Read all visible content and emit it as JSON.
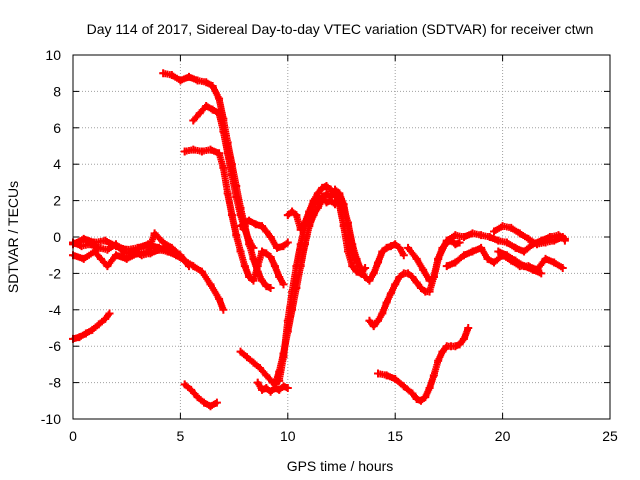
{
  "chart_data": {
    "type": "scatter",
    "title": "Day 114 of 2017, Sidereal Day-to-day VTEC variation (SDTVAR) for receiver ctwn",
    "xlabel": "GPS time / hours",
    "ylabel": "SDTVAR / TECUs",
    "xlim": [
      0,
      25
    ],
    "ylim": [
      -10,
      10
    ],
    "xticks": [
      0,
      5,
      10,
      15,
      20,
      25
    ],
    "yticks": [
      -10,
      -8,
      -6,
      -4,
      -2,
      0,
      2,
      4,
      6,
      8,
      10
    ],
    "grid": true,
    "marker": "plus",
    "color": "#ff0000",
    "series": [
      {
        "name": "s1",
        "x": [
          0.0,
          0.4,
          0.8,
          1.2,
          1.6,
          2.0,
          2.4,
          2.8,
          3.2,
          3.6,
          4.0,
          4.4,
          4.8,
          5.2,
          5.6,
          6.0,
          6.4,
          6.8,
          7.0
        ],
        "y": [
          -0.3,
          -0.5,
          -0.4,
          -0.6,
          -0.7,
          -0.4,
          -0.9,
          -0.8,
          -1.0,
          -0.9,
          -0.7,
          -0.8,
          -1.0,
          -1.3,
          -1.6,
          -1.9,
          -2.6,
          -3.4,
          -4.0
        ]
      },
      {
        "name": "s2",
        "x": [
          0.0,
          0.3,
          0.6,
          0.9,
          1.2,
          1.5,
          1.7
        ],
        "y": [
          -5.6,
          -5.5,
          -5.3,
          -5.1,
          -4.8,
          -4.5,
          -4.2
        ]
      },
      {
        "name": "s3",
        "x": [
          0.0,
          0.5,
          1.0,
          1.3,
          1.6,
          2.0,
          2.5,
          3.0,
          3.5,
          3.8,
          4.2,
          4.6,
          5.0,
          5.4
        ],
        "y": [
          -1.0,
          -1.2,
          -0.8,
          -1.2,
          -1.6,
          -1.0,
          -1.2,
          -0.9,
          -0.8,
          0.2,
          -0.3,
          -0.6,
          -1.0,
          -1.6
        ]
      },
      {
        "name": "s4",
        "x": [
          0.0,
          0.5,
          1.0,
          1.5,
          2.0,
          2.5,
          3.0,
          3.5,
          4.0,
          4.5,
          5.0
        ],
        "y": [
          -0.4,
          -0.1,
          -0.3,
          -0.2,
          -0.5,
          -0.7,
          -0.6,
          -0.4,
          -0.6,
          -0.8,
          -1.1
        ]
      },
      {
        "name": "s5",
        "x": [
          4.2,
          4.6,
          5.0,
          5.4,
          5.8,
          6.2,
          6.5,
          6.8,
          7.0,
          7.2,
          7.4,
          7.6,
          7.8,
          8.0,
          8.2,
          8.4,
          8.6,
          8.8,
          9.0,
          9.2
        ],
        "y": [
          9.0,
          8.9,
          8.6,
          8.8,
          8.6,
          8.5,
          8.3,
          7.6,
          6.5,
          5.2,
          4.0,
          2.8,
          1.6,
          0.6,
          -0.4,
          -1.2,
          -1.9,
          -2.4,
          -2.7,
          -2.8
        ]
      },
      {
        "name": "s6",
        "x": [
          5.6,
          5.9,
          6.2,
          6.5,
          6.8,
          7.0,
          7.2,
          7.4,
          7.6,
          7.8,
          8.0,
          8.2,
          8.4
        ],
        "y": [
          6.4,
          6.8,
          7.2,
          7.0,
          6.8,
          5.8,
          4.6,
          3.4,
          2.2,
          1.2,
          0.4,
          -0.2,
          -0.6
        ]
      },
      {
        "name": "s7",
        "x": [
          5.2,
          5.6,
          6.0,
          6.4,
          6.8,
          7.0,
          7.2,
          7.4,
          7.6,
          7.8,
          8.0,
          8.2,
          8.4,
          8.6,
          8.8,
          9.0,
          9.2,
          9.4,
          9.6,
          9.8
        ],
        "y": [
          4.7,
          4.8,
          4.7,
          4.8,
          4.6,
          3.8,
          2.4,
          1.2,
          0.1,
          -0.8,
          -1.6,
          -2.2,
          -2.4,
          -1.6,
          -0.8,
          -0.9,
          -1.1,
          -1.6,
          -2.2,
          -2.6
        ]
      },
      {
        "name": "s8",
        "x": [
          7.8,
          8.0,
          8.2,
          8.5,
          8.8,
          9.0,
          9.2,
          9.5,
          9.8,
          10.0
        ],
        "y": [
          0.6,
          0.8,
          0.9,
          0.7,
          0.6,
          0.3,
          0.0,
          -0.6,
          -0.5,
          -0.3
        ]
      },
      {
        "name": "s9",
        "x": [
          7.8,
          8.1,
          8.4,
          8.7,
          9.0,
          9.3,
          9.6,
          9.8,
          10.0,
          10.2,
          10.4,
          10.6,
          10.8,
          11.0,
          11.2,
          11.4,
          11.6,
          11.8,
          12.0,
          12.2,
          12.4,
          12.6,
          12.8,
          13.0,
          13.2,
          13.4,
          13.6
        ],
        "y": [
          -6.3,
          -6.6,
          -6.9,
          -7.2,
          -7.6,
          -8.0,
          -7.9,
          -6.6,
          -4.6,
          -3.0,
          -1.6,
          -0.4,
          0.6,
          1.4,
          2.0,
          2.4,
          2.7,
          2.8,
          2.6,
          2.4,
          1.8,
          0.6,
          -0.8,
          -1.6,
          -1.9,
          -2.0,
          -1.7
        ]
      },
      {
        "name": "s10",
        "x": [
          8.6,
          8.8,
          9.0,
          9.2,
          9.4,
          9.6,
          9.8,
          10.0
        ],
        "y": [
          -8.0,
          -8.4,
          -8.3,
          -8.5,
          -8.3,
          -8.4,
          -8.2,
          -8.3
        ]
      },
      {
        "name": "s11",
        "x": [
          9.4,
          9.6,
          9.8,
          10.0,
          10.2,
          10.4,
          10.6,
          10.8,
          11.0,
          11.2,
          11.4,
          11.6,
          11.8,
          12.0,
          12.2,
          12.4,
          12.6,
          12.8,
          13.0,
          13.2
        ],
        "y": [
          -8.1,
          -7.4,
          -6.4,
          -5.2,
          -4.0,
          -2.8,
          -1.6,
          -0.4,
          0.6,
          1.2,
          1.6,
          2.0,
          2.4,
          2.2,
          2.6,
          2.4,
          1.8,
          0.6,
          -0.6,
          -1.4
        ]
      },
      {
        "name": "s12",
        "x": [
          10.0,
          10.2,
          10.4,
          10.6,
          10.8,
          11.0,
          11.2,
          11.4,
          11.6,
          11.8,
          12.0,
          12.2,
          12.4,
          12.6,
          12.8,
          13.0,
          13.2,
          13.4,
          13.6,
          13.8,
          14.0,
          14.2,
          14.4,
          14.6,
          14.8,
          15.0,
          15.2,
          15.4
        ],
        "y": [
          1.2,
          1.4,
          1.2,
          0.4,
          0.8,
          1.4,
          1.8,
          2.0,
          2.2,
          1.9,
          2.0,
          1.8,
          2.2,
          1.6,
          0.8,
          -0.4,
          -1.2,
          -1.8,
          -2.2,
          -2.4,
          -2.0,
          -1.4,
          -0.8,
          -0.6,
          -0.5,
          -0.4,
          -0.6,
          -1.0
        ]
      },
      {
        "name": "s13",
        "x": [
          13.8,
          14.0,
          14.2,
          14.4,
          14.6,
          14.8,
          15.0,
          15.2,
          15.4,
          15.6,
          15.8,
          16.0,
          16.2,
          16.4,
          16.6,
          16.8,
          17.0,
          17.2,
          17.4,
          17.6,
          17.8,
          18.0
        ],
        "y": [
          -4.6,
          -4.9,
          -4.6,
          -4.2,
          -3.6,
          -3.1,
          -2.6,
          -2.2,
          -2.0,
          -2.0,
          -2.2,
          -2.5,
          -2.8,
          -3.0,
          -3.0,
          -2.2,
          -1.2,
          -0.6,
          -0.3,
          -0.2,
          -0.4,
          -0.3
        ]
      },
      {
        "name": "s14",
        "x": [
          14.2,
          14.6,
          15.0,
          15.4,
          15.8,
          16.0,
          16.2,
          16.4,
          16.6,
          16.8,
          17.0,
          17.2,
          17.4,
          17.6,
          17.8,
          18.0,
          18.2,
          18.4
        ],
        "y": [
          -7.5,
          -7.6,
          -7.8,
          -8.2,
          -8.6,
          -8.9,
          -9.0,
          -8.8,
          -8.3,
          -7.6,
          -6.8,
          -6.3,
          -6.0,
          -6.0,
          -6.0,
          -5.9,
          -5.6,
          -5.0
        ]
      },
      {
        "name": "s15",
        "x": [
          15.6,
          16.0,
          16.3,
          16.6,
          16.8,
          17.0,
          17.4,
          17.8,
          18.2,
          18.6,
          19.0,
          19.4,
          19.8,
          20.2,
          20.6,
          21.0,
          21.4,
          21.8,
          22.2,
          22.6,
          22.9
        ],
        "y": [
          -0.6,
          -1.2,
          -1.8,
          -2.4,
          -2.2,
          -1.2,
          -0.2,
          0.1,
          0.0,
          0.2,
          0.1,
          0.0,
          -0.2,
          -0.3,
          -0.6,
          -0.8,
          -0.4,
          -0.2,
          0.0,
          0.1,
          -0.1
        ]
      },
      {
        "name": "s16",
        "x": [
          17.4,
          17.8,
          18.2,
          18.6,
          19.0,
          19.3,
          19.6,
          20.0,
          20.4,
          20.8,
          21.2,
          21.6,
          22.0,
          22.4,
          22.8
        ],
        "y": [
          -1.6,
          -1.4,
          -1.0,
          -0.8,
          -0.6,
          -1.2,
          -1.4,
          -1.0,
          -1.3,
          -1.6,
          -1.6,
          -1.8,
          -1.2,
          -1.4,
          -1.7
        ]
      },
      {
        "name": "s17",
        "x": [
          19.6,
          20.0,
          20.4,
          20.8,
          21.2,
          21.6,
          22.0,
          22.4,
          22.8,
          22.9
        ],
        "y": [
          0.3,
          0.6,
          0.5,
          0.2,
          -0.1,
          -0.4,
          -0.3,
          -0.2,
          0.0,
          -0.2
        ]
      },
      {
        "name": "s18",
        "x": [
          19.8,
          20.2,
          20.6,
          21.0,
          21.4,
          21.8
        ],
        "y": [
          -0.8,
          -1.0,
          -1.3,
          -1.6,
          -1.8,
          -2.0
        ]
      },
      {
        "name": "s19",
        "x": [
          5.2,
          5.5,
          5.8,
          6.1,
          6.4,
          6.7
        ],
        "y": [
          -8.1,
          -8.4,
          -8.8,
          -9.1,
          -9.3,
          -9.1
        ]
      }
    ]
  }
}
